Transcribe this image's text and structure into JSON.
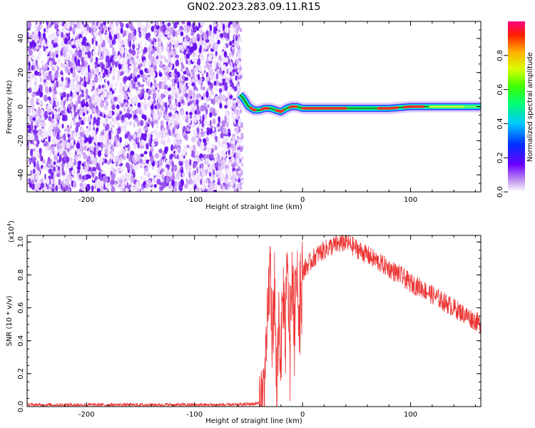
{
  "title": "GN02.2023.283.09.11.R15",
  "colorbar": {
    "label": "Normalized spectral amplitude",
    "ticks": [
      "0.0",
      "0.2",
      "0.4",
      "0.6",
      "0.8"
    ]
  },
  "chart_data": [
    {
      "type": "heatmap",
      "xlabel": "Height of straight line (km)",
      "ylabel": "Frequency (Hz)",
      "xlim": [
        -255,
        165
      ],
      "ylim": [
        -50,
        50
      ],
      "xticks": [
        -200,
        -100,
        0,
        100
      ],
      "xtick_labels": [
        "-200",
        "-100",
        "0",
        "100"
      ],
      "yticks": [
        -40,
        -20,
        0,
        20,
        40
      ],
      "ytick_labels": [
        "-40",
        "-20",
        "0",
        "20",
        "40"
      ],
      "noise_region_x": [
        -255,
        -58
      ],
      "signal_track": {
        "x": [
          -58,
          -55,
          -50,
          -45,
          -40,
          -35,
          -30,
          -25,
          -20,
          -15,
          -10,
          -5,
          0,
          20,
          40,
          60,
          80,
          100,
          120,
          140,
          165
        ],
        "y": [
          7,
          5,
          0,
          -2,
          -2,
          -1,
          -1,
          -2,
          -3,
          -1,
          0,
          0,
          -1,
          -1,
          -1,
          -1,
          -1,
          0,
          0,
          0,
          0
        ]
      }
    },
    {
      "type": "line",
      "xlabel": "Height of straight line (km)",
      "ylabel": "SNR (10 * v/v)",
      "y_multiplier": "(x10",
      "y_multiplier_exp": "4",
      "y_multiplier_close": ")",
      "xlim": [
        -255,
        165
      ],
      "ylim": [
        0,
        1.04
      ],
      "xticks": [
        -200,
        -100,
        0,
        100
      ],
      "xtick_labels": [
        "-200",
        "-100",
        "0",
        "100"
      ],
      "yticks": [
        0,
        0.2,
        0.4,
        0.6,
        0.8,
        1.0
      ],
      "ytick_labels": [
        "0.0",
        "0.2",
        "0.4",
        "0.6",
        "0.8",
        "1.0"
      ],
      "color": "#ee3333",
      "series": [
        {
          "x": [
            -255,
            -200,
            -150,
            -100,
            -60,
            -40,
            -37,
            -34,
            -32,
            -30,
            -28,
            -26,
            -24,
            -22,
            -20,
            -18,
            -16,
            -14,
            -12,
            -10,
            -8,
            -6,
            -4,
            -2,
            0,
            5,
            10,
            15,
            20,
            25,
            30,
            35,
            40,
            45,
            50,
            60,
            70,
            80,
            90,
            100,
            110,
            120,
            130,
            140,
            150,
            160,
            165
          ],
          "y": [
            0.01,
            0.01,
            0.01,
            0.01,
            0.01,
            0.02,
            0.05,
            0.2,
            0.6,
            0.85,
            0.4,
            0.75,
            0.1,
            0.55,
            0.3,
            0.7,
            0.5,
            0.82,
            0.45,
            0.78,
            0.6,
            0.84,
            0.62,
            0.8,
            0.82,
            0.86,
            0.9,
            0.93,
            0.95,
            0.97,
            0.98,
            0.99,
            1.0,
            0.98,
            0.96,
            0.92,
            0.88,
            0.84,
            0.8,
            0.75,
            0.72,
            0.68,
            0.64,
            0.6,
            0.56,
            0.52,
            0.5
          ]
        }
      ]
    }
  ]
}
